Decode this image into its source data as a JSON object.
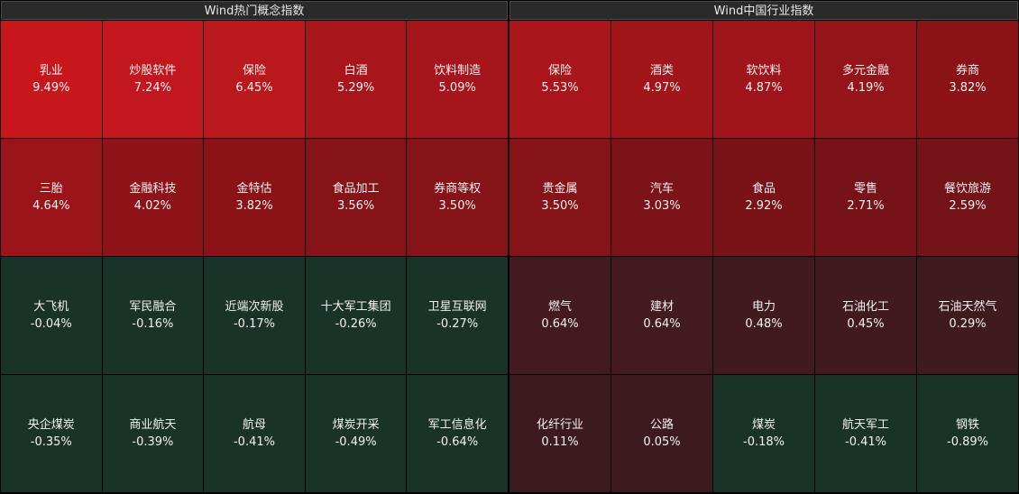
{
  "left_panel": {
    "title": "Wind热门概念指数",
    "tiles": [
      {
        "name": "乳业",
        "value": "9.49%",
        "color": "#c8161d"
      },
      {
        "name": "炒股软件",
        "value": "7.24%",
        "color": "#c2171e"
      },
      {
        "name": "保险",
        "value": "6.45%",
        "color": "#bb181e"
      },
      {
        "name": "白酒",
        "value": "5.29%",
        "color": "#a8151b"
      },
      {
        "name": "饮料制造",
        "value": "5.09%",
        "color": "#a5151b"
      },
      {
        "name": "三胎",
        "value": "4.64%",
        "color": "#9b141a"
      },
      {
        "name": "金融科技",
        "value": "4.02%",
        "color": "#8f1419"
      },
      {
        "name": "金特估",
        "value": "3.82%",
        "color": "#8b1318"
      },
      {
        "name": "食品加工",
        "value": "3.56%",
        "color": "#861318"
      },
      {
        "name": "券商等权",
        "value": "3.50%",
        "color": "#851318"
      },
      {
        "name": "大飞机",
        "value": "-0.04%",
        "color": "#1a3328"
      },
      {
        "name": "军民融合",
        "value": "-0.16%",
        "color": "#1a3328"
      },
      {
        "name": "近端次新股",
        "value": "-0.17%",
        "color": "#1a3328"
      },
      {
        "name": "十大军工集团",
        "value": "-0.26%",
        "color": "#1a3328"
      },
      {
        "name": "卫星互联网",
        "value": "-0.27%",
        "color": "#1a3328"
      },
      {
        "name": "央企煤炭",
        "value": "-0.35%",
        "color": "#1a3328"
      },
      {
        "name": "商业航天",
        "value": "-0.39%",
        "color": "#1a3328"
      },
      {
        "name": "航母",
        "value": "-0.41%",
        "color": "#1a3328"
      },
      {
        "name": "煤炭开采",
        "value": "-0.49%",
        "color": "#1a3328"
      },
      {
        "name": "军工信息化",
        "value": "-0.64%",
        "color": "#1a3328"
      }
    ]
  },
  "right_panel": {
    "title": "Wind中国行业指数",
    "tiles": [
      {
        "name": "保险",
        "value": "5.53%",
        "color": "#a9151b"
      },
      {
        "name": "酒类",
        "value": "4.97%",
        "color": "#a2151b"
      },
      {
        "name": "软饮料",
        "value": "4.87%",
        "color": "#a0151b"
      },
      {
        "name": "多元金融",
        "value": "4.19%",
        "color": "#931419"
      },
      {
        "name": "券商",
        "value": "3.82%",
        "color": "#8b1318"
      },
      {
        "name": "贵金属",
        "value": "3.50%",
        "color": "#851318"
      },
      {
        "name": "汽车",
        "value": "3.03%",
        "color": "#7c1318"
      },
      {
        "name": "食品",
        "value": "2.92%",
        "color": "#7a1318"
      },
      {
        "name": "零售",
        "value": "2.71%",
        "color": "#761318"
      },
      {
        "name": "餐饮旅游",
        "value": "2.59%",
        "color": "#741318"
      },
      {
        "name": "燃气",
        "value": "0.64%",
        "color": "#421a1f"
      },
      {
        "name": "建材",
        "value": "0.64%",
        "color": "#421a1f"
      },
      {
        "name": "电力",
        "value": "0.48%",
        "color": "#411a1f"
      },
      {
        "name": "石油化工",
        "value": "0.45%",
        "color": "#411a1f"
      },
      {
        "name": "石油天然气",
        "value": "0.29%",
        "color": "#3f1a1f"
      },
      {
        "name": "化纤行业",
        "value": "0.11%",
        "color": "#3d1a1f"
      },
      {
        "name": "公路",
        "value": "0.05%",
        "color": "#3c1a1f"
      },
      {
        "name": "煤炭",
        "value": "-0.18%",
        "color": "#1a3328"
      },
      {
        "name": "航天军工",
        "value": "-0.41%",
        "color": "#1a3328"
      },
      {
        "name": "钢铁",
        "value": "-0.89%",
        "color": "#1a3328"
      }
    ]
  }
}
